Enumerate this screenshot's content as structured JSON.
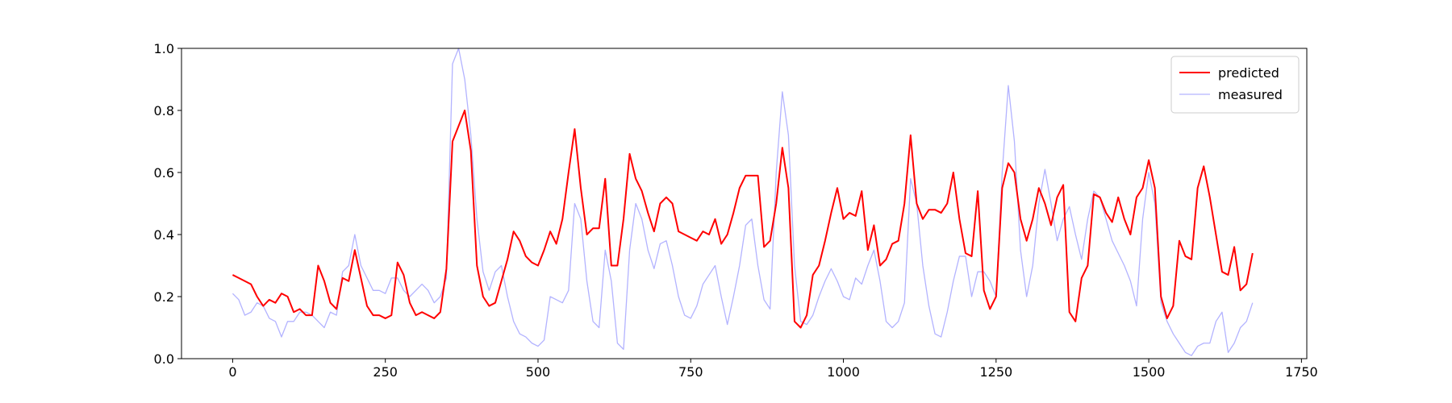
{
  "chart_data": {
    "type": "line",
    "x": [
      0,
      10,
      20,
      30,
      40,
      50,
      60,
      70,
      80,
      90,
      100,
      110,
      120,
      130,
      140,
      150,
      160,
      170,
      180,
      190,
      200,
      210,
      220,
      230,
      240,
      250,
      260,
      270,
      280,
      290,
      300,
      310,
      320,
      330,
      340,
      350,
      360,
      370,
      380,
      390,
      400,
      410,
      420,
      430,
      440,
      450,
      460,
      470,
      480,
      490,
      500,
      510,
      520,
      530,
      540,
      550,
      560,
      570,
      580,
      590,
      600,
      610,
      620,
      630,
      640,
      650,
      660,
      670,
      680,
      690,
      700,
      710,
      720,
      730,
      740,
      750,
      760,
      770,
      780,
      790,
      800,
      810,
      820,
      830,
      840,
      850,
      860,
      870,
      880,
      890,
      900,
      910,
      920,
      930,
      940,
      950,
      960,
      970,
      980,
      990,
      1000,
      1010,
      1020,
      1030,
      1040,
      1050,
      1060,
      1070,
      1080,
      1090,
      1100,
      1110,
      1120,
      1130,
      1140,
      1150,
      1160,
      1170,
      1180,
      1190,
      1200,
      1210,
      1220,
      1230,
      1240,
      1250,
      1260,
      1270,
      1280,
      1290,
      1300,
      1310,
      1320,
      1330,
      1340,
      1350,
      1360,
      1370,
      1380,
      1390,
      1400,
      1410,
      1420,
      1430,
      1440,
      1450,
      1460,
      1470,
      1480,
      1490,
      1500,
      1510,
      1520,
      1530,
      1540,
      1550,
      1560,
      1570,
      1580,
      1590,
      1600,
      1610,
      1620,
      1630,
      1640,
      1650,
      1660,
      1670
    ],
    "series": [
      {
        "name": "predicted",
        "color": "#ff0000",
        "values": [
          0.27,
          0.26,
          0.25,
          0.24,
          0.2,
          0.17,
          0.19,
          0.18,
          0.21,
          0.2,
          0.15,
          0.16,
          0.14,
          0.14,
          0.3,
          0.25,
          0.18,
          0.16,
          0.26,
          0.25,
          0.35,
          0.26,
          0.17,
          0.14,
          0.14,
          0.13,
          0.14,
          0.31,
          0.27,
          0.18,
          0.14,
          0.15,
          0.14,
          0.13,
          0.15,
          0.29,
          0.7,
          0.75,
          0.8,
          0.67,
          0.3,
          0.2,
          0.17,
          0.18,
          0.25,
          0.32,
          0.41,
          0.38,
          0.33,
          0.31,
          0.3,
          0.35,
          0.41,
          0.37,
          0.45,
          0.6,
          0.74,
          0.55,
          0.4,
          0.42,
          0.42,
          0.58,
          0.3,
          0.3,
          0.45,
          0.66,
          0.58,
          0.54,
          0.47,
          0.41,
          0.5,
          0.52,
          0.5,
          0.41,
          0.4,
          0.39,
          0.38,
          0.41,
          0.4,
          0.45,
          0.37,
          0.4,
          0.47,
          0.55,
          0.59,
          0.59,
          0.59,
          0.36,
          0.38,
          0.5,
          0.68,
          0.55,
          0.12,
          0.1,
          0.14,
          0.27,
          0.3,
          0.38,
          0.47,
          0.55,
          0.45,
          0.47,
          0.46,
          0.54,
          0.35,
          0.43,
          0.3,
          0.32,
          0.37,
          0.38,
          0.5,
          0.72,
          0.5,
          0.45,
          0.48,
          0.48,
          0.47,
          0.5,
          0.6,
          0.45,
          0.34,
          0.33,
          0.54,
          0.22,
          0.16,
          0.2,
          0.55,
          0.63,
          0.6,
          0.45,
          0.38,
          0.45,
          0.55,
          0.5,
          0.43,
          0.52,
          0.56,
          0.15,
          0.12,
          0.26,
          0.3,
          0.53,
          0.52,
          0.47,
          0.44,
          0.52,
          0.45,
          0.4,
          0.52,
          0.55,
          0.64,
          0.55,
          0.2,
          0.13,
          0.17,
          0.38,
          0.33,
          0.32,
          0.55,
          0.62,
          0.52,
          0.4,
          0.28,
          0.27,
          0.36,
          0.22,
          0.24,
          0.34
        ]
      },
      {
        "name": "measured",
        "color": "#b3b3ff",
        "values": [
          0.21,
          0.19,
          0.14,
          0.15,
          0.18,
          0.17,
          0.13,
          0.12,
          0.07,
          0.12,
          0.12,
          0.15,
          0.15,
          0.14,
          0.12,
          0.1,
          0.15,
          0.14,
          0.28,
          0.3,
          0.4,
          0.3,
          0.26,
          0.22,
          0.22,
          0.21,
          0.26,
          0.26,
          0.22,
          0.2,
          0.22,
          0.24,
          0.22,
          0.18,
          0.2,
          0.26,
          0.95,
          1.0,
          0.9,
          0.72,
          0.45,
          0.28,
          0.22,
          0.28,
          0.3,
          0.2,
          0.12,
          0.08,
          0.07,
          0.05,
          0.04,
          0.06,
          0.2,
          0.19,
          0.18,
          0.22,
          0.5,
          0.45,
          0.25,
          0.12,
          0.1,
          0.35,
          0.25,
          0.05,
          0.03,
          0.35,
          0.5,
          0.45,
          0.35,
          0.29,
          0.37,
          0.38,
          0.3,
          0.2,
          0.14,
          0.13,
          0.17,
          0.24,
          0.27,
          0.3,
          0.2,
          0.11,
          0.2,
          0.3,
          0.43,
          0.45,
          0.3,
          0.19,
          0.16,
          0.6,
          0.86,
          0.72,
          0.3,
          0.12,
          0.11,
          0.14,
          0.2,
          0.25,
          0.29,
          0.25,
          0.2,
          0.19,
          0.26,
          0.24,
          0.3,
          0.35,
          0.25,
          0.12,
          0.1,
          0.12,
          0.18,
          0.58,
          0.5,
          0.3,
          0.17,
          0.08,
          0.07,
          0.15,
          0.25,
          0.33,
          0.33,
          0.2,
          0.28,
          0.28,
          0.25,
          0.2,
          0.6,
          0.88,
          0.7,
          0.35,
          0.2,
          0.3,
          0.5,
          0.61,
          0.5,
          0.38,
          0.45,
          0.49,
          0.4,
          0.32,
          0.45,
          0.54,
          0.52,
          0.45,
          0.38,
          0.34,
          0.3,
          0.25,
          0.17,
          0.45,
          0.6,
          0.5,
          0.18,
          0.12,
          0.08,
          0.05,
          0.02,
          0.01,
          0.04,
          0.05,
          0.05,
          0.12,
          0.15,
          0.02,
          0.05,
          0.1,
          0.12,
          0.18
        ]
      }
    ],
    "xlim": [
      -83.75,
      1758.75
    ],
    "xticks": [
      0,
      250,
      500,
      750,
      1000,
      1250,
      1500,
      1750
    ],
    "ylim": [
      0,
      1
    ],
    "yticks": [
      {
        "value": 0,
        "label": "0.0"
      },
      0.2,
      0.4,
      0.6,
      0.8,
      {
        "value": 1,
        "label": "1.0"
      }
    ],
    "legend": "upper right"
  }
}
